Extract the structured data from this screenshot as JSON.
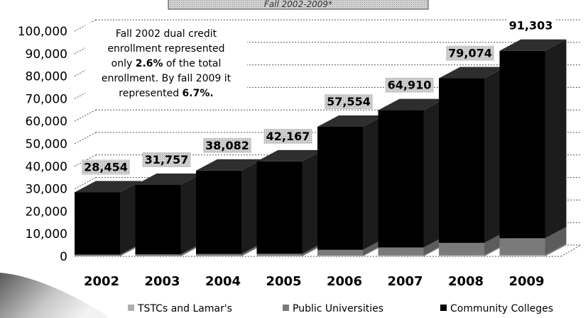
{
  "chart_data": {
    "type": "bar",
    "title": "Fall 2002-2009*",
    "categories": [
      "2002",
      "2003",
      "2004",
      "2005",
      "2006",
      "2007",
      "2008",
      "2009"
    ],
    "totals": [
      "28,454",
      "31,757",
      "38,082",
      "42,167",
      "57,554",
      "64,910",
      "79,074",
      "91,303"
    ],
    "series": [
      {
        "name": "TSTCs and Lamar's",
        "color": "#b0b0b0",
        "values": [
          300,
          300,
          350,
          350,
          400,
          450,
          500,
          550
        ]
      },
      {
        "name": "Public Universities",
        "color": "#7a7a7a",
        "values": [
          500,
          600,
          700,
          800,
          2500,
          3500,
          5500,
          7500
        ]
      },
      {
        "name": "Community Colleges",
        "color": "#000000",
        "values": [
          27654,
          30857,
          37032,
          41017,
          54654,
          60960,
          73074,
          83253
        ]
      }
    ],
    "y_ticks": [
      "0",
      "10,000",
      "20,000",
      "30,000",
      "40,000",
      "50,000",
      "60,000",
      "70,000",
      "80,000",
      "90,000",
      "100,000"
    ],
    "ylim": [
      0,
      100000
    ],
    "grid": true,
    "legend": "bottom",
    "annotation": {
      "lines": [
        [
          {
            "t": "Fall 2002 dual credit",
            "b": false
          }
        ],
        [
          {
            "t": "enrollment represented",
            "b": false
          }
        ],
        [
          {
            "t": "only ",
            "b": false
          },
          {
            "t": "2.6%",
            "b": true
          },
          {
            "t": " of the total",
            "b": false
          }
        ],
        [
          {
            "t": "enrollment. By fall 2009 it",
            "b": false
          }
        ],
        [
          {
            "t": "represented ",
            "b": false
          },
          {
            "t": "6.7%.",
            "b": true
          }
        ]
      ]
    }
  }
}
